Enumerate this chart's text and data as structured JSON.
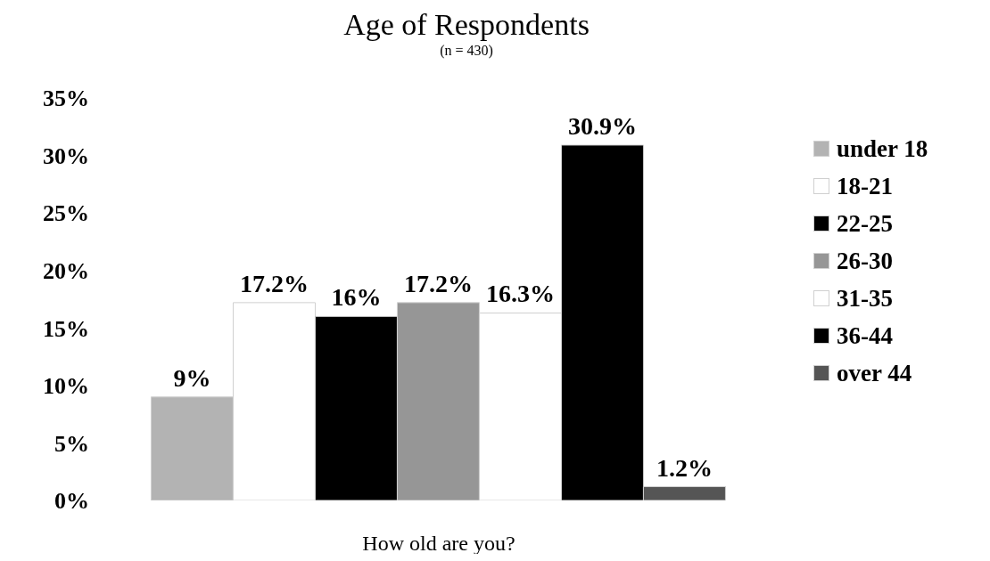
{
  "chart_data": {
    "type": "bar",
    "title": "Age of Respondents",
    "subtitle": "(n = 430)",
    "xlabel": "How old are you?",
    "categories": [
      null
    ],
    "series": [
      {
        "name": "under 18",
        "color": "#b3b3b3",
        "values": [
          9
        ],
        "value_labels": [
          "9%"
        ]
      },
      {
        "name": "18-21",
        "color": "#ffffff",
        "values": [
          17.2
        ],
        "value_labels": [
          "17.2%"
        ]
      },
      {
        "name": "22-25",
        "color": "#000000",
        "values": [
          16
        ],
        "value_labels": [
          "16%"
        ]
      },
      {
        "name": "26-30",
        "color": "#969696",
        "values": [
          17.2
        ],
        "value_labels": [
          "17.2%"
        ]
      },
      {
        "name": "31-35",
        "color": "#ffffff",
        "values": [
          16.3
        ],
        "value_labels": [
          "16.3%"
        ]
      },
      {
        "name": "36-44",
        "color": "#000000",
        "values": [
          30.9
        ],
        "value_labels": [
          "30.9%"
        ]
      },
      {
        "name": "over 44",
        "color": "#555555",
        "values": [
          1.2
        ],
        "value_labels": [
          "1.2%"
        ]
      }
    ],
    "ylim": [
      0,
      35
    ],
    "yticks": [
      {
        "value": 0,
        "label": "0%"
      },
      {
        "value": 5,
        "label": "5%"
      },
      {
        "value": 10,
        "label": "10%"
      },
      {
        "value": 15,
        "label": "15%"
      },
      {
        "value": 20,
        "label": "20%"
      },
      {
        "value": 25,
        "label": "25%"
      },
      {
        "value": 30,
        "label": "30%"
      },
      {
        "value": 35,
        "label": "35%"
      }
    ],
    "grid": false,
    "legend": "right"
  }
}
